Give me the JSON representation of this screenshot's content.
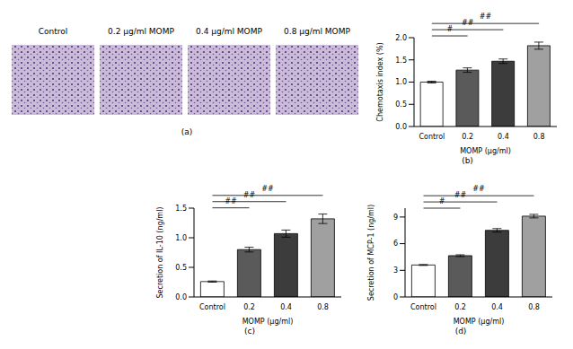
{
  "images": {
    "panel": "(a)",
    "titles": [
      "Control",
      "0.2 μg/ml MOMP",
      "0.4 μg/ml MOMP",
      "0.8 μg/ml MOMP"
    ]
  },
  "chart_data": [
    {
      "type": "bar",
      "panel": "(b)",
      "x_label": "MOMP (μg/ml)",
      "y_label": "Chemotaxis index (%)",
      "categories": [
        "Control",
        "0.2",
        "0.4",
        "0.8"
      ],
      "values": [
        1.0,
        1.27,
        1.47,
        1.82
      ],
      "errors": [
        0.02,
        0.05,
        0.05,
        0.08
      ],
      "colors": [
        "#ffffff",
        "#5a5a5a",
        "#3c3c3c",
        "#a0a0a0"
      ],
      "ylim": [
        0,
        2
      ],
      "yticks": [
        {
          "value": 0,
          "label": "0.0"
        },
        {
          "value": 0.5,
          "label": "0.5"
        },
        {
          "value": 1,
          "label": "1.0"
        },
        {
          "value": 1.5,
          "label": "1.5"
        },
        {
          "value": 2,
          "label": "2.0"
        }
      ],
      "annotations": [
        {
          "from": "Control",
          "to": "0.2",
          "text": "#"
        },
        {
          "from": "Control",
          "to": "0.4",
          "text": "##"
        },
        {
          "from": "Control",
          "to": "0.8",
          "text": "##"
        }
      ]
    },
    {
      "type": "bar",
      "panel": "(c)",
      "x_label": "MOMP (μg/ml)",
      "y_label": "Secretion of IL-10 (ng/ml)",
      "categories": [
        "Control",
        "0.2",
        "0.4",
        "0.8"
      ],
      "values": [
        0.26,
        0.8,
        1.07,
        1.32
      ],
      "errors": [
        0.01,
        0.04,
        0.06,
        0.08
      ],
      "colors": [
        "#ffffff",
        "#5a5a5a",
        "#3c3c3c",
        "#a0a0a0"
      ],
      "ylim": [
        0,
        1.5
      ],
      "yticks": [
        {
          "value": 0,
          "label": "0.0"
        },
        {
          "value": 0.5,
          "label": "0.5"
        },
        {
          "value": 1,
          "label": "1.0"
        },
        {
          "value": 1.5,
          "label": "1.5"
        }
      ],
      "annotations": [
        {
          "from": "Control",
          "to": "0.2",
          "text": "##"
        },
        {
          "from": "Control",
          "to": "0.4",
          "text": "##"
        },
        {
          "from": "Control",
          "to": "0.8",
          "text": "##"
        }
      ]
    },
    {
      "type": "bar",
      "panel": "(d)",
      "x_label": "MOMP (μg/ml)",
      "y_label": "Secretion of MCP-1 (ng/ml)",
      "categories": [
        "Control",
        "0.2",
        "0.4",
        "0.8"
      ],
      "values": [
        3.6,
        4.65,
        7.5,
        9.1
      ],
      "errors": [
        0.05,
        0.1,
        0.2,
        0.2
      ],
      "colors": [
        "#ffffff",
        "#5a5a5a",
        "#3c3c3c",
        "#a0a0a0"
      ],
      "ylim": [
        0,
        10
      ],
      "yticks": [
        0,
        3,
        6,
        9
      ],
      "annotations": [
        {
          "from": "Control",
          "to": "0.2",
          "text": "#"
        },
        {
          "from": "Control",
          "to": "0.4",
          "text": "##"
        },
        {
          "from": "Control",
          "to": "0.8",
          "text": "##"
        }
      ]
    }
  ]
}
